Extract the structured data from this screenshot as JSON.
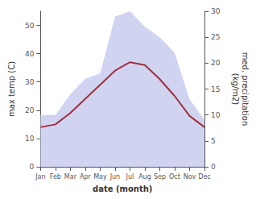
{
  "chart_data": {
    "type": "line",
    "categories": [
      "Jan",
      "Feb",
      "Mar",
      "Apr",
      "May",
      "Jun",
      "Jul",
      "Aug",
      "Sep",
      "Oct",
      "Nov",
      "Dec"
    ],
    "series": [
      {
        "type": "area",
        "axis": "y2",
        "color": "#c8ccee",
        "values": [
          10,
          10,
          14,
          17,
          18,
          29,
          30,
          27,
          25,
          22,
          13,
          9
        ]
      },
      {
        "type": "line",
        "axis": "y",
        "color": "#a03040",
        "values": [
          14,
          15,
          19,
          24,
          29,
          34,
          37,
          36,
          31,
          25,
          18,
          14
        ]
      }
    ],
    "xlabel": "date (month)",
    "ylabel": "max temp (C)",
    "y2label": "med. precipitation\n(kg/m2)",
    "ylim": [
      0,
      55
    ],
    "yticks": [
      0,
      10,
      20,
      30,
      40,
      50
    ],
    "y2lim": [
      0,
      30
    ],
    "y2ticks": [
      0,
      5,
      10,
      15,
      20,
      25,
      30
    ],
    "grid": false
  }
}
